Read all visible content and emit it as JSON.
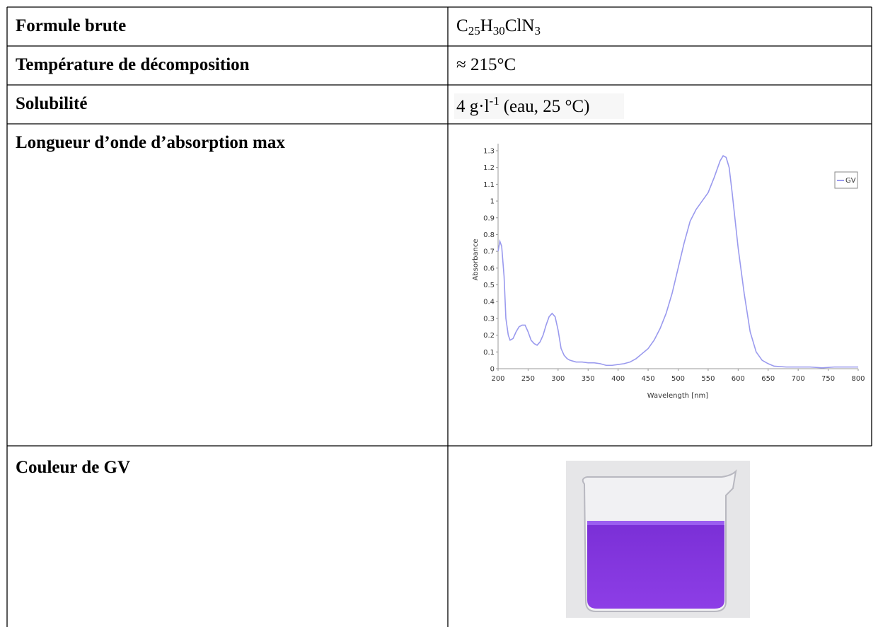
{
  "table": {
    "rows": [
      {
        "label": "Formule brute",
        "value_parts": [
          "C",
          "25",
          "H",
          "30",
          "ClN",
          "3"
        ]
      },
      {
        "label": "Température de décomposition",
        "value": "≈ 215°C"
      },
      {
        "label": "Solubilité",
        "value_parts": [
          "4 g·l",
          "-1",
          "(eau, 25 °C)"
        ]
      },
      {
        "label": "Longueur d’onde d’absorption max",
        "chart": {
          "type": "line",
          "xlabel": "Wavelength [nm]",
          "ylabel": "Absorbance",
          "x": [
            200,
            203,
            206,
            210,
            213,
            217,
            220,
            225,
            230,
            235,
            240,
            245,
            250,
            255,
            260,
            265,
            270,
            275,
            280,
            285,
            290,
            295,
            300,
            305,
            310,
            315,
            320,
            330,
            340,
            350,
            360,
            370,
            380,
            390,
            400,
            410,
            420,
            430,
            440,
            450,
            460,
            470,
            480,
            490,
            500,
            510,
            520,
            530,
            540,
            550,
            560,
            570,
            575,
            580,
            585,
            590,
            600,
            610,
            620,
            630,
            640,
            650,
            660,
            680,
            700,
            720,
            740,
            760,
            780,
            800
          ],
          "series": [
            {
              "name": "GV",
              "color": "#9a9aee",
              "values": [
                0.7,
                0.76,
                0.73,
                0.55,
                0.3,
                0.2,
                0.17,
                0.18,
                0.22,
                0.25,
                0.26,
                0.26,
                0.22,
                0.17,
                0.15,
                0.14,
                0.16,
                0.2,
                0.26,
                0.31,
                0.33,
                0.31,
                0.23,
                0.12,
                0.08,
                0.06,
                0.05,
                0.04,
                0.04,
                0.035,
                0.035,
                0.03,
                0.02,
                0.02,
                0.025,
                0.03,
                0.04,
                0.06,
                0.09,
                0.12,
                0.17,
                0.24,
                0.33,
                0.45,
                0.6,
                0.75,
                0.88,
                0.95,
                1.0,
                1.05,
                1.14,
                1.24,
                1.27,
                1.26,
                1.2,
                1.05,
                0.72,
                0.45,
                0.22,
                0.1,
                0.05,
                0.03,
                0.015,
                0.01,
                0.01,
                0.01,
                0.005,
                0.01,
                0.01,
                0.01
              ]
            }
          ],
          "xlim": [
            200,
            800
          ],
          "ylim": [
            0,
            1.3
          ],
          "xticks": [
            200,
            250,
            300,
            350,
            400,
            450,
            500,
            550,
            600,
            650,
            700,
            750,
            800
          ],
          "yticks": [
            0,
            0.1,
            0.2,
            0.3,
            0.4,
            0.5,
            0.6,
            0.7,
            0.8,
            0.9,
            1,
            1.1,
            1.2,
            1.3
          ],
          "legend": "upper right"
        }
      },
      {
        "label": "Couleur de GV"
      }
    ]
  }
}
